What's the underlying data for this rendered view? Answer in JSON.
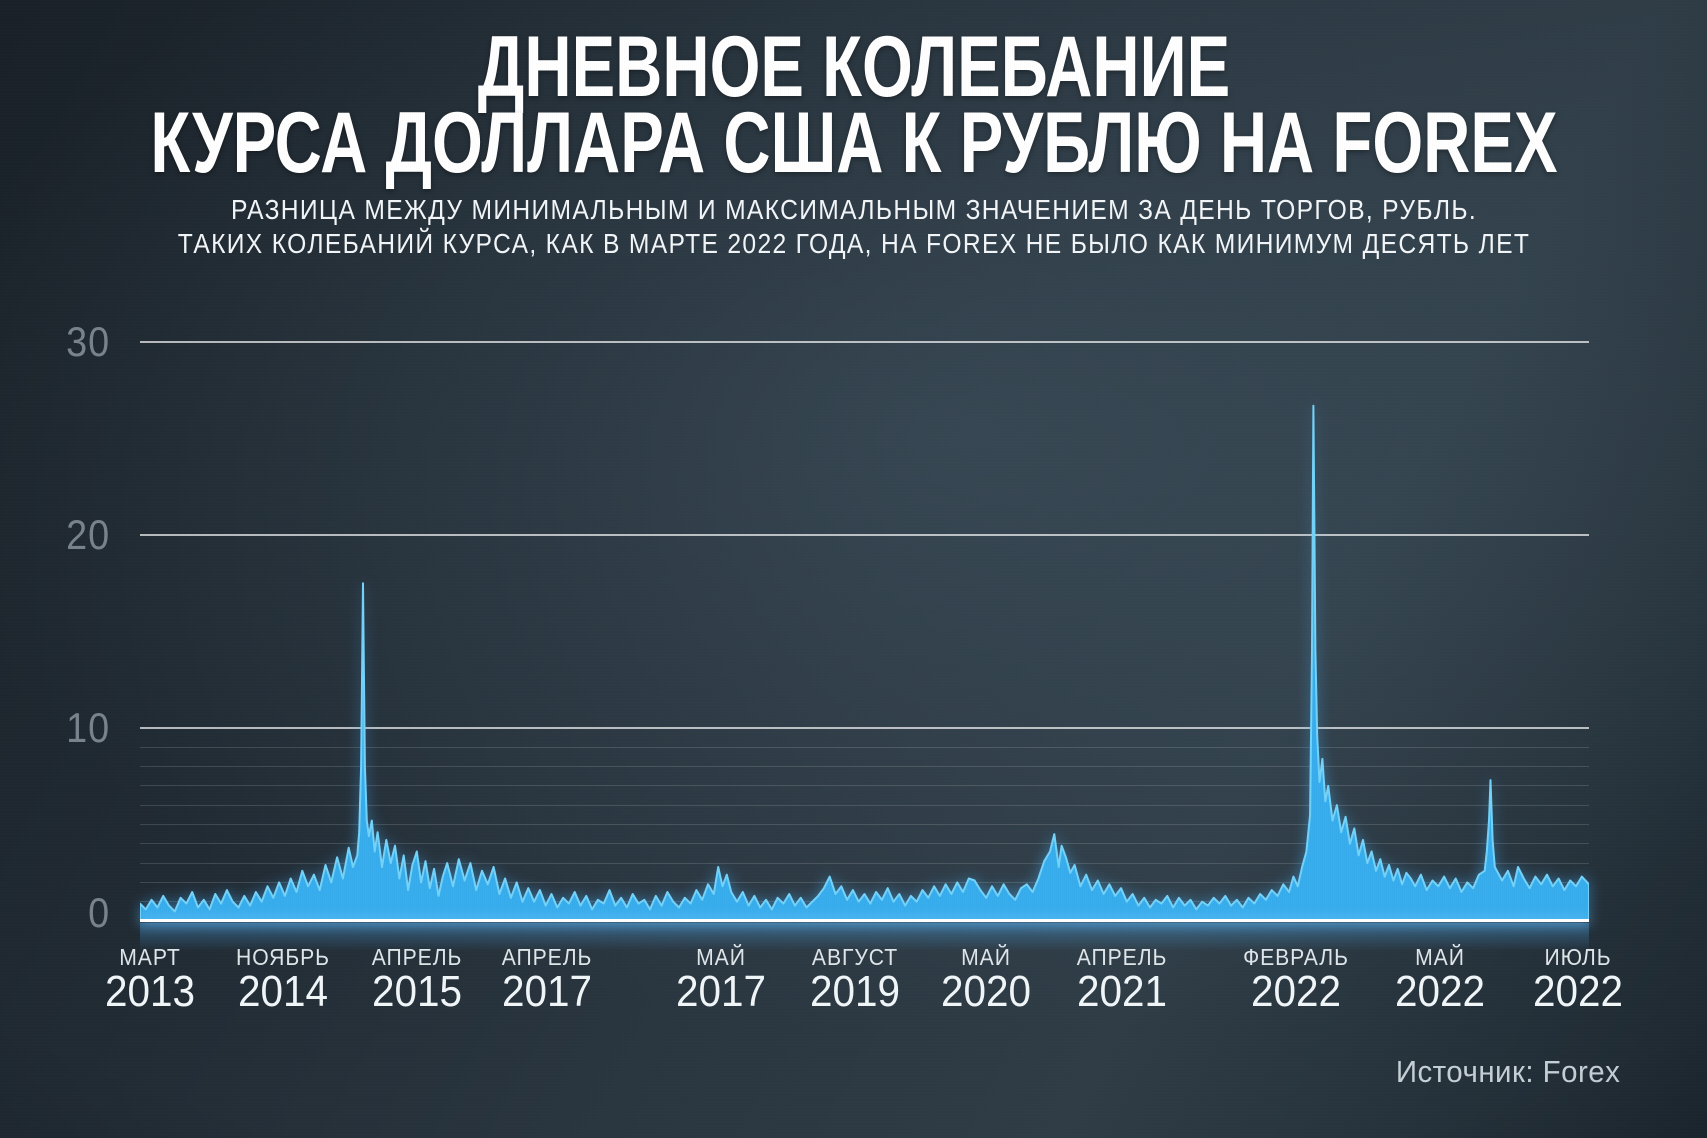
{
  "chart_data": {
    "type": "area",
    "title_line1": "ДНЕВНОЕ КОЛЕБАНИЕ",
    "title_line2": "КУРСА ДОЛЛАРА США К РУБЛЮ НА FOREX",
    "subtitle_line1": "РАЗНИЦА МЕЖДУ МИНИМАЛЬНЫМ И МАКСИМАЛЬНЫМ ЗНАЧЕНИЕМ ЗА ДЕНЬ ТОРГОВ, РУБЛЬ.",
    "subtitle_line2": "ТАКИХ КОЛЕБАНИЙ КУРСА, КАК В МАРТЕ 2022 ГОДА, НА FOREX НЕ БЫЛО КАК МИНИМУМ ДЕСЯТЬ ЛЕТ",
    "source": "Источник: Forex",
    "ylim": [
      0,
      30
    ],
    "y_major_ticks": [
      0,
      10,
      20,
      30
    ],
    "y_minor_ticks": [
      1,
      2,
      3,
      4,
      5,
      6,
      7,
      8,
      9
    ],
    "grid": "major horizontal lines at 10/20/30, minor lines 1-9, no vertical grid",
    "legend": "none",
    "x_ticks": [
      {
        "month": "МАРТ",
        "year": "2013",
        "pos": 0.0069
      },
      {
        "month": "НОЯБРЬ",
        "year": "2014",
        "pos": 0.0987
      },
      {
        "month": "АПРЕЛЬ",
        "year": "2015",
        "pos": 0.1912
      },
      {
        "month": "АПРЕЛЬ",
        "year": "2017",
        "pos": 0.2809
      },
      {
        "month": "МАЙ",
        "year": "2017",
        "pos": 0.401
      },
      {
        "month": "АВГУСТ",
        "year": "2019",
        "pos": 0.4934
      },
      {
        "month": "МАЙ",
        "year": "2020",
        "pos": 0.5838
      },
      {
        "month": "АПРЕЛЬ",
        "year": "2021",
        "pos": 0.6777
      },
      {
        "month": "ФЕВРАЛЬ",
        "year": "2022",
        "pos": 0.7978
      },
      {
        "month": "МАЙ",
        "year": "2022",
        "pos": 0.8972
      },
      {
        "month": "ИЮЛЬ",
        "year": "2022",
        "pos": 0.9924
      }
    ],
    "peaks": [
      {
        "pos": 0.1539,
        "value": 17.5
      },
      {
        "pos": 0.8098,
        "value": 26.7
      },
      {
        "pos": 0.932,
        "value": 7.3
      }
    ],
    "colors": {
      "area": "#37aeee",
      "area_edge": "#74d3fa",
      "baseline": "#ffffff",
      "grid_major": "rgba(255,255,255,0.68)",
      "grid_minor": "rgba(255,255,255,0.14)",
      "axis_text": "#79838d",
      "tick_text": "#f1f6f9",
      "background": "#2a3640"
    },
    "points": [
      [
        0,
        0.9
      ],
      [
        0.004,
        0.6
      ],
      [
        0.008,
        1.1
      ],
      [
        0.012,
        0.7
      ],
      [
        0.016,
        1.3
      ],
      [
        0.02,
        0.8
      ],
      [
        0.024,
        0.5
      ],
      [
        0.028,
        1.2
      ],
      [
        0.032,
        0.9
      ],
      [
        0.036,
        1.5
      ],
      [
        0.04,
        0.7
      ],
      [
        0.044,
        1.1
      ],
      [
        0.048,
        0.6
      ],
      [
        0.052,
        1.4
      ],
      [
        0.056,
        0.9
      ],
      [
        0.06,
        1.6
      ],
      [
        0.064,
        1
      ],
      [
        0.068,
        0.7
      ],
      [
        0.072,
        1.3
      ],
      [
        0.076,
        0.8
      ],
      [
        0.08,
        1.5
      ],
      [
        0.084,
        1
      ],
      [
        0.088,
        1.8
      ],
      [
        0.092,
        1.2
      ],
      [
        0.096,
        2
      ],
      [
        0.1,
        1.3
      ],
      [
        0.104,
        2.2
      ],
      [
        0.108,
        1.5
      ],
      [
        0.112,
        2.6
      ],
      [
        0.116,
        1.8
      ],
      [
        0.12,
        2.4
      ],
      [
        0.124,
        1.6
      ],
      [
        0.128,
        2.9
      ],
      [
        0.132,
        2
      ],
      [
        0.136,
        3.3
      ],
      [
        0.14,
        2.2
      ],
      [
        0.144,
        3.8
      ],
      [
        0.147,
        2.8
      ],
      [
        0.15,
        3.4
      ],
      [
        0.1513,
        4.6
      ],
      [
        0.1526,
        8
      ],
      [
        0.1539,
        17.5
      ],
      [
        0.1552,
        8
      ],
      [
        0.1565,
        5.2
      ],
      [
        0.158,
        4.4
      ],
      [
        0.16,
        5.2
      ],
      [
        0.162,
        3.6
      ],
      [
        0.164,
        4.6
      ],
      [
        0.167,
        2.8
      ],
      [
        0.17,
        4.2
      ],
      [
        0.173,
        3
      ],
      [
        0.176,
        3.9
      ],
      [
        0.179,
        2.2
      ],
      [
        0.182,
        3.4
      ],
      [
        0.185,
        1.6
      ],
      [
        0.188,
        2.9
      ],
      [
        0.191,
        3.6
      ],
      [
        0.194,
        2
      ],
      [
        0.197,
        3.1
      ],
      [
        0.2,
        1.7
      ],
      [
        0.203,
        2.7
      ],
      [
        0.206,
        1.3
      ],
      [
        0.209,
        2.3
      ],
      [
        0.212,
        3
      ],
      [
        0.216,
        1.8
      ],
      [
        0.22,
        3.2
      ],
      [
        0.224,
        2.1
      ],
      [
        0.228,
        3
      ],
      [
        0.232,
        1.6
      ],
      [
        0.236,
        2.6
      ],
      [
        0.24,
        1.9
      ],
      [
        0.244,
        2.8
      ],
      [
        0.248,
        1.4
      ],
      [
        0.252,
        2.2
      ],
      [
        0.256,
        1.2
      ],
      [
        0.26,
        2
      ],
      [
        0.264,
        1
      ],
      [
        0.268,
        1.7
      ],
      [
        0.272,
        1
      ],
      [
        0.276,
        1.6
      ],
      [
        0.28,
        0.8
      ],
      [
        0.284,
        1.4
      ],
      [
        0.288,
        0.7
      ],
      [
        0.292,
        1.2
      ],
      [
        0.296,
        0.9
      ],
      [
        0.3,
        1.5
      ],
      [
        0.304,
        0.8
      ],
      [
        0.308,
        1.3
      ],
      [
        0.312,
        0.6
      ],
      [
        0.316,
        1.1
      ],
      [
        0.32,
        0.9
      ],
      [
        0.324,
        1.6
      ],
      [
        0.328,
        0.8
      ],
      [
        0.332,
        1.2
      ],
      [
        0.336,
        0.7
      ],
      [
        0.34,
        1.4
      ],
      [
        0.344,
        0.9
      ],
      [
        0.348,
        1.1
      ],
      [
        0.352,
        0.6
      ],
      [
        0.356,
        1.3
      ],
      [
        0.36,
        0.8
      ],
      [
        0.364,
        1.5
      ],
      [
        0.368,
        1
      ],
      [
        0.372,
        0.7
      ],
      [
        0.376,
        1.2
      ],
      [
        0.38,
        0.9
      ],
      [
        0.384,
        1.6
      ],
      [
        0.388,
        1.1
      ],
      [
        0.392,
        1.9
      ],
      [
        0.396,
        1.4
      ],
      [
        0.399,
        2.8
      ],
      [
        0.402,
        1.8
      ],
      [
        0.405,
        2.4
      ],
      [
        0.408,
        1.5
      ],
      [
        0.412,
        1
      ],
      [
        0.416,
        1.5
      ],
      [
        0.42,
        0.8
      ],
      [
        0.424,
        1.3
      ],
      [
        0.428,
        0.7
      ],
      [
        0.432,
        1.1
      ],
      [
        0.436,
        0.6
      ],
      [
        0.44,
        1.2
      ],
      [
        0.444,
        0.9
      ],
      [
        0.448,
        1.4
      ],
      [
        0.452,
        0.8
      ],
      [
        0.456,
        1.2
      ],
      [
        0.46,
        0.7
      ],
      [
        0.464,
        1
      ],
      [
        0.468,
        1.3
      ],
      [
        0.472,
        1.7
      ],
      [
        0.476,
        2.3
      ],
      [
        0.48,
        1.4
      ],
      [
        0.484,
        1.8
      ],
      [
        0.488,
        1.1
      ],
      [
        0.492,
        1.6
      ],
      [
        0.496,
        1
      ],
      [
        0.5,
        1.4
      ],
      [
        0.504,
        0.9
      ],
      [
        0.508,
        1.5
      ],
      [
        0.512,
        1.1
      ],
      [
        0.516,
        1.7
      ],
      [
        0.52,
        1
      ],
      [
        0.524,
        1.4
      ],
      [
        0.528,
        0.8
      ],
      [
        0.532,
        1.3
      ],
      [
        0.536,
        1
      ],
      [
        0.54,
        1.6
      ],
      [
        0.544,
        1.2
      ],
      [
        0.548,
        1.8
      ],
      [
        0.552,
        1.3
      ],
      [
        0.556,
        1.9
      ],
      [
        0.56,
        1.4
      ],
      [
        0.564,
        2
      ],
      [
        0.568,
        1.5
      ],
      [
        0.572,
        2.2
      ],
      [
        0.576,
        2.1
      ],
      [
        0.58,
        1.6
      ],
      [
        0.584,
        1.2
      ],
      [
        0.588,
        1.8
      ],
      [
        0.592,
        1.3
      ],
      [
        0.596,
        1.9
      ],
      [
        0.6,
        1.4
      ],
      [
        0.604,
        1.1
      ],
      [
        0.608,
        1.7
      ],
      [
        0.612,
        1.9
      ],
      [
        0.616,
        1.5
      ],
      [
        0.62,
        2.2
      ],
      [
        0.624,
        3.1
      ],
      [
        0.628,
        3.6
      ],
      [
        0.631,
        4.5
      ],
      [
        0.634,
        2.8
      ],
      [
        0.636,
        3.9
      ],
      [
        0.639,
        3.3
      ],
      [
        0.642,
        2.5
      ],
      [
        0.645,
        2.9
      ],
      [
        0.649,
        1.8
      ],
      [
        0.653,
        2.4
      ],
      [
        0.657,
        1.6
      ],
      [
        0.661,
        2.1
      ],
      [
        0.665,
        1.4
      ],
      [
        0.669,
        1.9
      ],
      [
        0.673,
        1.3
      ],
      [
        0.677,
        1.7
      ],
      [
        0.681,
        1
      ],
      [
        0.685,
        1.4
      ],
      [
        0.689,
        0.8
      ],
      [
        0.693,
        1.2
      ],
      [
        0.697,
        0.7
      ],
      [
        0.701,
        1.1
      ],
      [
        0.705,
        0.9
      ],
      [
        0.709,
        1.3
      ],
      [
        0.713,
        0.7
      ],
      [
        0.717,
        1.2
      ],
      [
        0.721,
        0.8
      ],
      [
        0.725,
        1.1
      ],
      [
        0.729,
        0.6
      ],
      [
        0.733,
        1
      ],
      [
        0.737,
        0.8
      ],
      [
        0.741,
        1.2
      ],
      [
        0.745,
        0.9
      ],
      [
        0.749,
        1.3
      ],
      [
        0.753,
        0.8
      ],
      [
        0.757,
        1.1
      ],
      [
        0.761,
        0.7
      ],
      [
        0.765,
        1.2
      ],
      [
        0.769,
        0.9
      ],
      [
        0.773,
        1.4
      ],
      [
        0.777,
        1.1
      ],
      [
        0.781,
        1.6
      ],
      [
        0.785,
        1.3
      ],
      [
        0.789,
        1.9
      ],
      [
        0.793,
        1.5
      ],
      [
        0.796,
        2.3
      ],
      [
        0.799,
        1.8
      ],
      [
        0.802,
        2.8
      ],
      [
        0.805,
        3.6
      ],
      [
        0.8075,
        5.5
      ],
      [
        0.8088,
        14
      ],
      [
        0.8098,
        26.7
      ],
      [
        0.8112,
        14
      ],
      [
        0.8124,
        9.6
      ],
      [
        0.814,
        7.2
      ],
      [
        0.816,
        8.4
      ],
      [
        0.818,
        6.2
      ],
      [
        0.82,
        7
      ],
      [
        0.823,
        5.2
      ],
      [
        0.826,
        6
      ],
      [
        0.829,
        4.6
      ],
      [
        0.832,
        5.4
      ],
      [
        0.835,
        4
      ],
      [
        0.838,
        4.8
      ],
      [
        0.841,
        3.4
      ],
      [
        0.844,
        4.2
      ],
      [
        0.847,
        3
      ],
      [
        0.85,
        3.6
      ],
      [
        0.853,
        2.6
      ],
      [
        0.856,
        3.2
      ],
      [
        0.859,
        2.3
      ],
      [
        0.862,
        2.9
      ],
      [
        0.865,
        2.1
      ],
      [
        0.868,
        2.7
      ],
      [
        0.871,
        1.9
      ],
      [
        0.874,
        2.5
      ],
      [
        0.877,
        2.2
      ],
      [
        0.88,
        1.8
      ],
      [
        0.884,
        2.4
      ],
      [
        0.888,
        1.6
      ],
      [
        0.892,
        2.1
      ],
      [
        0.896,
        1.8
      ],
      [
        0.9,
        2.3
      ],
      [
        0.904,
        1.7
      ],
      [
        0.908,
        2.2
      ],
      [
        0.912,
        1.5
      ],
      [
        0.916,
        2
      ],
      [
        0.92,
        1.7
      ],
      [
        0.924,
        2.4
      ],
      [
        0.928,
        2.6
      ],
      [
        0.9295,
        3.6
      ],
      [
        0.931,
        5.2
      ],
      [
        0.932,
        7.3
      ],
      [
        0.9335,
        4.2
      ],
      [
        0.935,
        2.8
      ],
      [
        0.94,
        2.1
      ],
      [
        0.944,
        2.6
      ],
      [
        0.948,
        1.8
      ],
      [
        0.951,
        2.8
      ],
      [
        0.955,
        2.2
      ],
      [
        0.959,
        1.7
      ],
      [
        0.963,
        2.3
      ],
      [
        0.967,
        1.9
      ],
      [
        0.971,
        2.4
      ],
      [
        0.975,
        1.8
      ],
      [
        0.979,
        2.2
      ],
      [
        0.983,
        1.6
      ],
      [
        0.987,
        2.1
      ],
      [
        0.991,
        1.8
      ],
      [
        0.995,
        2.3
      ],
      [
        1,
        1.9
      ]
    ]
  }
}
